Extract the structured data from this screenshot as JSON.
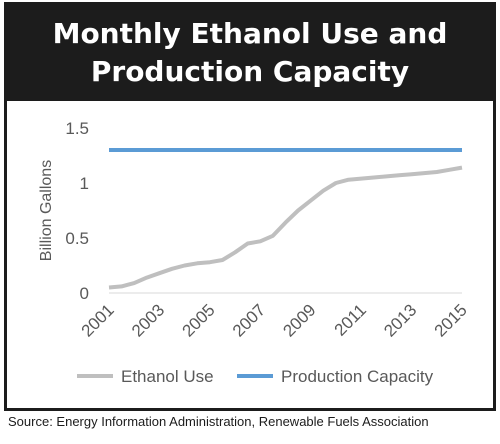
{
  "chart_data": {
    "type": "line",
    "title_line1": "Monthly Ethanol Use and",
    "title_line2": "Production Capacity",
    "ylabel": "Billion Gallons",
    "ylim": [
      0,
      1.5
    ],
    "xlim": [
      2001,
      2015
    ],
    "y_ticks": [
      "0",
      "0.5",
      "1",
      "1.5"
    ],
    "x_ticks": [
      "2001",
      "2003",
      "2005",
      "2007",
      "2009",
      "2011",
      "2013",
      "2015"
    ],
    "series": [
      {
        "name": "Ethanol Use",
        "color": "#bfbfbf",
        "x": [
          2001,
          2001.5,
          2002,
          2002.5,
          2003,
          2003.5,
          2004,
          2004.5,
          2005,
          2005.5,
          2006,
          2006.5,
          2007,
          2007.5,
          2008,
          2008.5,
          2009,
          2009.5,
          2010,
          2010.5,
          2011,
          2011.5,
          2012,
          2012.5,
          2013,
          2013.5,
          2014,
          2014.5,
          2015
        ],
        "values": [
          0.05,
          0.06,
          0.09,
          0.14,
          0.18,
          0.22,
          0.25,
          0.27,
          0.28,
          0.3,
          0.37,
          0.45,
          0.47,
          0.52,
          0.64,
          0.75,
          0.84,
          0.93,
          1.0,
          1.03,
          1.04,
          1.05,
          1.06,
          1.07,
          1.08,
          1.09,
          1.1,
          1.12,
          1.14
        ]
      },
      {
        "name": "Production Capacity",
        "color": "#5b9bd5",
        "x": [
          2001,
          2015
        ],
        "values": [
          1.3,
          1.3
        ]
      }
    ],
    "legend_position": "bottom",
    "grid": false
  },
  "source": "Source: Energy Information Administration, Renewable Fuels Association"
}
